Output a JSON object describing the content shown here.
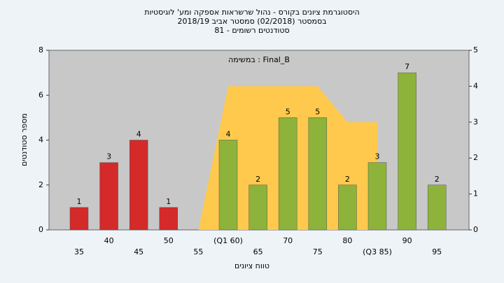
{
  "chart_data": {
    "type": "bar",
    "title": [
      "היסטוגרמת ציונים בקורס - נהול שרשראות אספקה ומע' לוגיסטיות",
      "בסמסטר  (02/2018)  סמסטר אביב 2018/19",
      "סטודנטים רשומים - 81"
    ],
    "xlabel": "טווח ציונים",
    "ylabel": "מספר סטודנטים",
    "categories": [
      "35",
      "40",
      "45",
      "50",
      "55",
      "(Q1 60)",
      "65",
      "70",
      "75",
      "80",
      "(Q3 85)",
      "90",
      "95"
    ],
    "values": [
      1,
      3,
      4,
      1,
      null,
      4,
      2,
      5,
      5,
      2,
      3,
      7,
      2
    ],
    "colors": [
      "#d42a2a",
      "#d42a2a",
      "#d42a2a",
      "#d42a2a",
      "#d42a2a",
      "#8db33a",
      "#8db33a",
      "#8db33a",
      "#8db33a",
      "#8db33a",
      "#8db33a",
      "#8db33a",
      "#8db33a"
    ],
    "ylim": [
      0,
      8
    ],
    "yticks": [
      0,
      2,
      4,
      6,
      8
    ],
    "y2lim": [
      0,
      5
    ],
    "y2ticks": [
      0,
      1,
      2,
      3,
      4,
      5
    ],
    "series": [
      {
        "name": "במשימה : Final_B",
        "color": "#ffc94d",
        "axis": "y2",
        "values": [
          null,
          null,
          null,
          null,
          0,
          4,
          4,
          4,
          4,
          3,
          3,
          null,
          null
        ]
      }
    ]
  }
}
